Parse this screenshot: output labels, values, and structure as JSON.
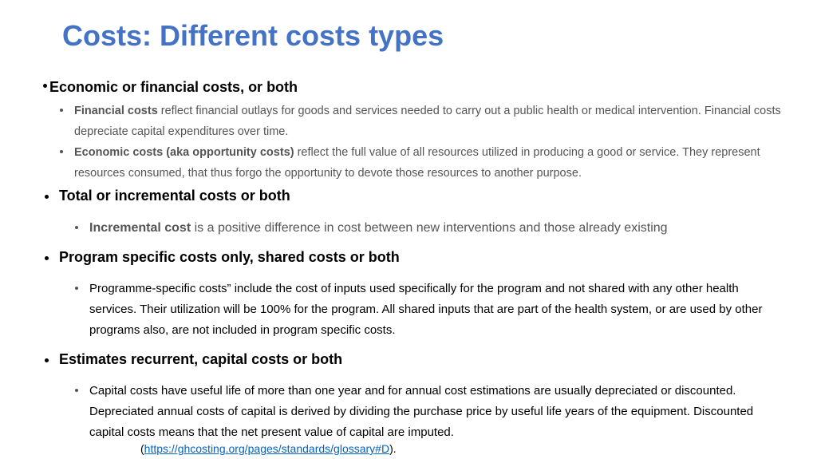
{
  "title": "Costs: Different costs types",
  "sections": [
    {
      "heading": "Economic or financial costs, or both",
      "items": [
        {
          "bold": "Financial costs",
          "text": " reflect financial outlays for goods and services needed to carry out a public health or medical intervention. Financial costs depreciate capital expenditures over time."
        },
        {
          "bold": "Economic costs (aka opportunity costs)",
          "text": " reflect the full value of all resources utilized in producing a good or service. They represent resources consumed, that thus forgo the opportunity to devote those resources to another purpose."
        }
      ]
    },
    {
      "heading": "Total or incremental costs or both",
      "items": [
        {
          "bold": "Incremental cost",
          "text": " is a positive difference in cost between new interventions and those already existing"
        }
      ]
    },
    {
      "heading": "Program specific costs only, shared costs or both",
      "items": [
        {
          "text": "Programme-specific costs” include the cost of inputs used specifically for the program and not shared with any other health services. Their utilization will be 100% for the program. All shared inputs that are part of the health system, or are used by other programs also, are not included in program specific costs."
        }
      ]
    },
    {
      "heading": "Estimates recurrent, capital costs or both",
      "items": [
        {
          "text": "Capital costs have useful life of more than one year and for annual cost estimations are usually depreciated or discounted. Depreciated annual costs of capital is derived by dividing the purchase price by useful life years of the equipment. Discounted capital costs means that the net present value of capital are imputed."
        }
      ]
    }
  ],
  "note": {
    "prefix": "(",
    "link": "https://ghcosting.org/pages/standards/glossary#D",
    "suffix": ")."
  }
}
